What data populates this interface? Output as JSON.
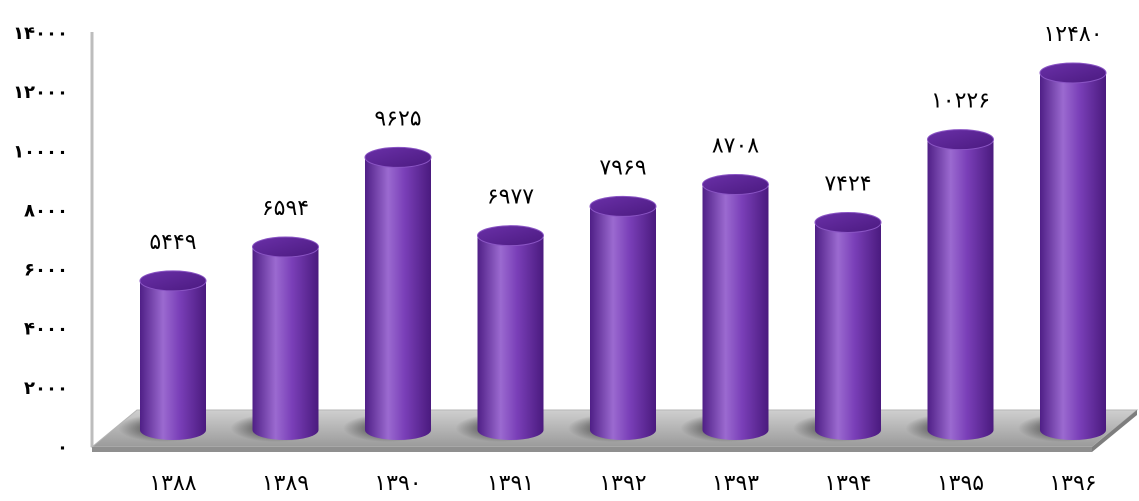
{
  "chart_data": {
    "type": "bar",
    "categories": [
      "۱۳۸۸",
      "۱۳۸۹",
      "۱۳۹۰",
      "۱۳۹۱",
      "۱۳۹۲",
      "۱۳۹۳",
      "۱۳۹۴",
      "۱۳۹۵",
      "۱۳۹۶"
    ],
    "values": [
      5449,
      6594,
      9625,
      6977,
      7969,
      8708,
      7424,
      10226,
      12480
    ],
    "value_labels": [
      "۵۴۴۹",
      "۶۵۹۴",
      "۹۶۲۵",
      "۶۹۷۷",
      "۷۹۶۹",
      "۸۷۰۸",
      "۷۴۲۴",
      "۱۰۲۲۶",
      "۱۲۴۸۰"
    ],
    "ylim": [
      0,
      14000
    ],
    "yticks": [
      0,
      2000,
      4000,
      6000,
      8000,
      10000,
      12000,
      14000
    ],
    "ytick_labels": [
      "۰",
      "۲۰۰۰",
      "۴۰۰۰",
      "۶۰۰۰",
      "۸۰۰۰",
      "۱۰۰۰۰",
      "۱۲۰۰۰",
      "۱۴۰۰۰"
    ],
    "title": "",
    "xlabel": "",
    "ylabel": "",
    "grid": false,
    "bar_style": "3d-cylinder",
    "colors": {
      "bar_light": "#9b6ad0",
      "bar_mid": "#7a3fb8",
      "bar_dark": "#4f1f86",
      "bar_top": "#5b2596",
      "floor": "#a9a9a9",
      "floor_shadow": "#3a3a3a",
      "axis": "#bdbdbd"
    }
  }
}
